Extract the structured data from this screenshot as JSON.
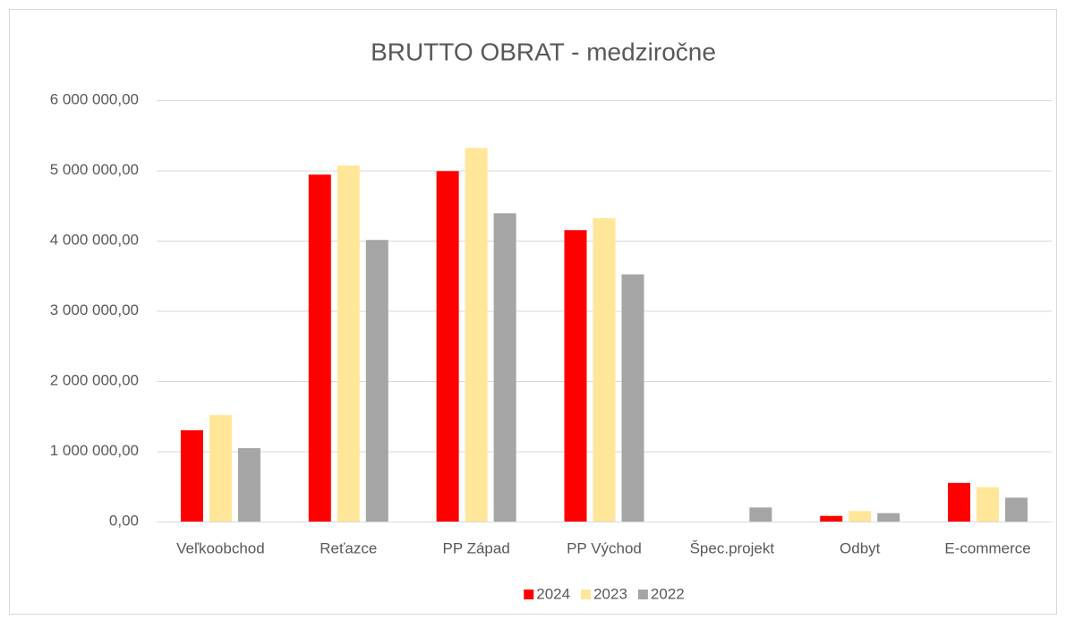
{
  "chart_data": {
    "type": "bar",
    "title": "BRUTTO OBRAT - medziročne",
    "categories": [
      "Veľkoobchod",
      "Reťazce",
      "PP Západ",
      "PP Východ",
      "Špec.projekt",
      "Odbyt",
      "E-commerce"
    ],
    "series": [
      {
        "name": "2024",
        "color": "#ff0000",
        "values": [
          1300000,
          4940000,
          4990000,
          4150000,
          0,
          80000,
          550000
        ]
      },
      {
        "name": "2023",
        "color": "#ffe699",
        "values": [
          1516000,
          5070000,
          5320000,
          4320000,
          0,
          150000,
          490000
        ]
      },
      {
        "name": "2022",
        "color": "#a5a5a5",
        "values": [
          1045000,
          4010000,
          4390000,
          3520000,
          200000,
          120000,
          340000
        ]
      }
    ],
    "ylim": [
      0,
      6000000
    ],
    "yticks": [
      {
        "value": 0,
        "label": "0,00"
      },
      {
        "value": 1000000,
        "label": "1 000 000,00"
      },
      {
        "value": 2000000,
        "label": "2 000 000,00"
      },
      {
        "value": 3000000,
        "label": "3 000 000,00"
      },
      {
        "value": 4000000,
        "label": "4 000 000,00"
      },
      {
        "value": 5000000,
        "label": "5 000 000,00"
      },
      {
        "value": 6000000,
        "label": "6 000 000,00"
      }
    ],
    "grid": true,
    "legend": "bottom"
  }
}
